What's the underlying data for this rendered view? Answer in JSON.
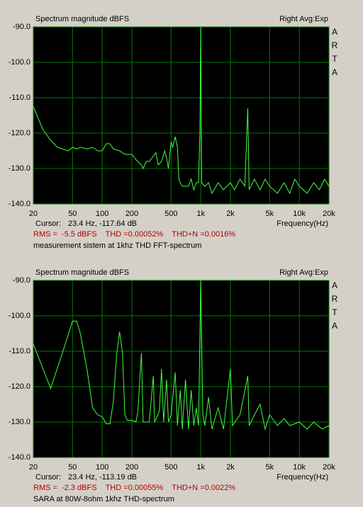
{
  "chart_data": [
    {
      "type": "line",
      "title": "Spectrum magnitude dBFS",
      "right_label": "Right Avg:Exp",
      "side_label": [
        "A",
        "R",
        "T",
        "A"
      ],
      "x_label": "Frequency(Hz)",
      "cursor_label": "Cursor:",
      "cursor_value": "23.4 Hz, -117.64 dB",
      "stats": "RMS =  -5.5 dBFS    THD =0.00052%    THD+N =0.0016%",
      "caption": "measurement sistem at 1khz THD FFT-spectrum",
      "xscale": "log",
      "grid": true,
      "color": "#40ff40",
      "grid_color": "#007a00",
      "background": "#000000",
      "xlim": [
        20,
        20000
      ],
      "ylim": [
        -140,
        -90
      ],
      "xticks": [
        20,
        50,
        100,
        200,
        500,
        {
          "value": 1000,
          "label": "1k"
        },
        {
          "value": 2000,
          "label": "2k"
        },
        {
          "value": 5000,
          "label": "5k"
        },
        {
          "value": 10000,
          "label": "10k"
        },
        {
          "value": 20000,
          "label": "20k"
        }
      ],
      "yticks": [
        {
          "value": -90,
          "label": "-90.0"
        },
        {
          "value": -100,
          "label": "-100.0"
        },
        {
          "value": -110,
          "label": "-110.0"
        },
        {
          "value": -120,
          "label": "-120.0"
        },
        {
          "value": -130,
          "label": "-130.0"
        },
        {
          "value": -140,
          "label": "-140.0"
        }
      ],
      "x": [
        20,
        25,
        30,
        35,
        40,
        45,
        50,
        55,
        60,
        70,
        80,
        90,
        100,
        110,
        120,
        130,
        150,
        170,
        200,
        220,
        250,
        260,
        280,
        300,
        320,
        350,
        370,
        400,
        430,
        450,
        470,
        500,
        520,
        550,
        580,
        600,
        620,
        650,
        700,
        750,
        800,
        850,
        900,
        950,
        980,
        1000,
        1020,
        1100,
        1200,
        1300,
        1500,
        1700,
        2000,
        2200,
        2500,
        2800,
        3000,
        3100,
        3500,
        4000,
        4500,
        5000,
        6000,
        7000,
        8000,
        9000,
        10000,
        12000,
        14000,
        16000,
        18000,
        20000
      ],
      "values": [
        -112.5,
        -119,
        -122,
        -124,
        -124.5,
        -125,
        -124,
        -124.5,
        -124,
        -124.5,
        -124,
        -125,
        -125,
        -123,
        -123,
        -124.5,
        -125,
        -126,
        -126,
        -127.5,
        -129,
        -130,
        -128,
        -128,
        -127,
        -125.5,
        -129,
        -128,
        -125,
        -127,
        -130,
        -122.5,
        -124,
        -121,
        -124,
        -133,
        -134,
        -135,
        -135,
        -135,
        -133,
        -136,
        -134,
        -134,
        -120,
        -90,
        -134,
        -135,
        -134,
        -137,
        -134,
        -136,
        -134,
        -136,
        -133,
        -135,
        -113,
        -136,
        -133,
        -136,
        -133,
        -135,
        -137,
        -134,
        -137,
        -133,
        -135,
        -137,
        -134,
        -136,
        -133,
        -135
      ]
    },
    {
      "type": "line",
      "title": "Spectrum magnitude dBFS",
      "right_label": "Right Avg:Exp",
      "side_label": [
        "A",
        "R",
        "T",
        "A"
      ],
      "x_label": "Frequency(Hz)",
      "cursor_label": "Cursor:",
      "cursor_value": "23.4 Hz, -113.19 dB",
      "stats": "RMS =  -2.3 dBFS    THD =0.00055%    THD+N =0.0022%",
      "caption": "SARA at 80W-8ohm 1khz THD-spectrum",
      "xscale": "log",
      "grid": true,
      "color": "#40ff40",
      "grid_color": "#007a00",
      "background": "#000000",
      "xlim": [
        20,
        20000
      ],
      "ylim": [
        -140,
        -90
      ],
      "xticks": [
        20,
        50,
        100,
        200,
        500,
        {
          "value": 1000,
          "label": "1k"
        },
        {
          "value": 2000,
          "label": "2k"
        },
        {
          "value": 5000,
          "label": "5k"
        },
        {
          "value": 10000,
          "label": "10k"
        },
        {
          "value": 20000,
          "label": "20k"
        }
      ],
      "yticks": [
        {
          "value": -90,
          "label": "-90.0"
        },
        {
          "value": -100,
          "label": "-100.0"
        },
        {
          "value": -110,
          "label": "-110.0"
        },
        {
          "value": -120,
          "label": "-120.0"
        },
        {
          "value": -130,
          "label": "-130.0"
        },
        {
          "value": -140,
          "label": "-140.0"
        }
      ],
      "x": [
        20,
        30,
        40,
        50,
        55,
        60,
        70,
        80,
        90,
        100,
        110,
        120,
        130,
        140,
        150,
        160,
        170,
        180,
        200,
        220,
        230,
        250,
        260,
        300,
        330,
        340,
        380,
        400,
        420,
        450,
        470,
        500,
        550,
        580,
        620,
        650,
        700,
        750,
        800,
        850,
        900,
        950,
        1000,
        1050,
        1100,
        1200,
        1300,
        1500,
        1700,
        2000,
        2100,
        2500,
        3000,
        3100,
        3500,
        4000,
        4500,
        5000,
        6000,
        7000,
        8000,
        10000,
        12000,
        14000,
        17000,
        20000
      ],
      "values": [
        -108,
        -120.5,
        -110,
        -101.5,
        -101.5,
        -105,
        -115,
        -126,
        -128,
        -128.5,
        -130.5,
        -130.5,
        -124,
        -111,
        -104.5,
        -110,
        -128,
        -129.5,
        -129.5,
        -130,
        -127,
        -110.5,
        -130,
        -130,
        -117,
        -130,
        -127,
        -115,
        -130,
        -118,
        -130,
        -128,
        -116,
        -131,
        -121,
        -132,
        -118,
        -132,
        -121,
        -131,
        -126,
        -131,
        -90,
        -128,
        -131,
        -123,
        -132,
        -126,
        -132,
        -115,
        -131,
        -128,
        -117,
        -131,
        -128,
        -125,
        -132,
        -128,
        -131,
        -129,
        -131,
        -130,
        -132,
        -130,
        -132,
        -131
      ]
    }
  ]
}
